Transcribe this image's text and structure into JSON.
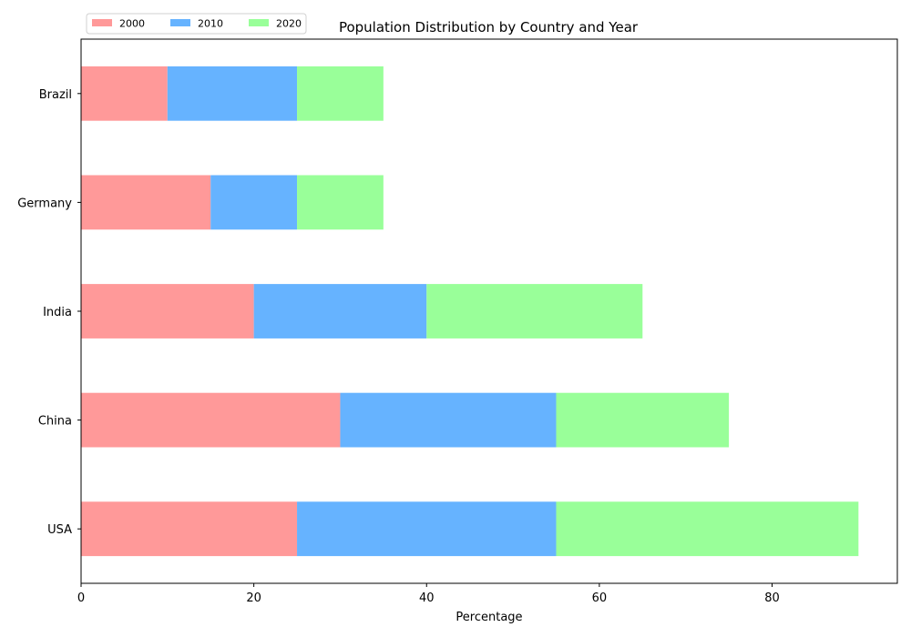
{
  "chart_data": {
    "type": "bar",
    "orientation": "horizontal",
    "stacked": true,
    "title": "Population Distribution by Country and Year",
    "xlabel": "Percentage",
    "ylabel": "",
    "categories": [
      "USA",
      "China",
      "India",
      "Germany",
      "Brazil"
    ],
    "series": [
      {
        "name": "2000",
        "color": "#ff9999",
        "values": [
          25,
          30,
          20,
          15,
          10
        ]
      },
      {
        "name": "2010",
        "color": "#66b3ff",
        "values": [
          30,
          25,
          20,
          10,
          15
        ]
      },
      {
        "name": "2020",
        "color": "#99ff99",
        "values": [
          35,
          20,
          25,
          10,
          10
        ]
      }
    ],
    "xlim": [
      0,
      94.5
    ],
    "xticks": [
      0,
      20,
      40,
      60,
      80
    ],
    "grid": false,
    "legend_position": "top-left"
  }
}
